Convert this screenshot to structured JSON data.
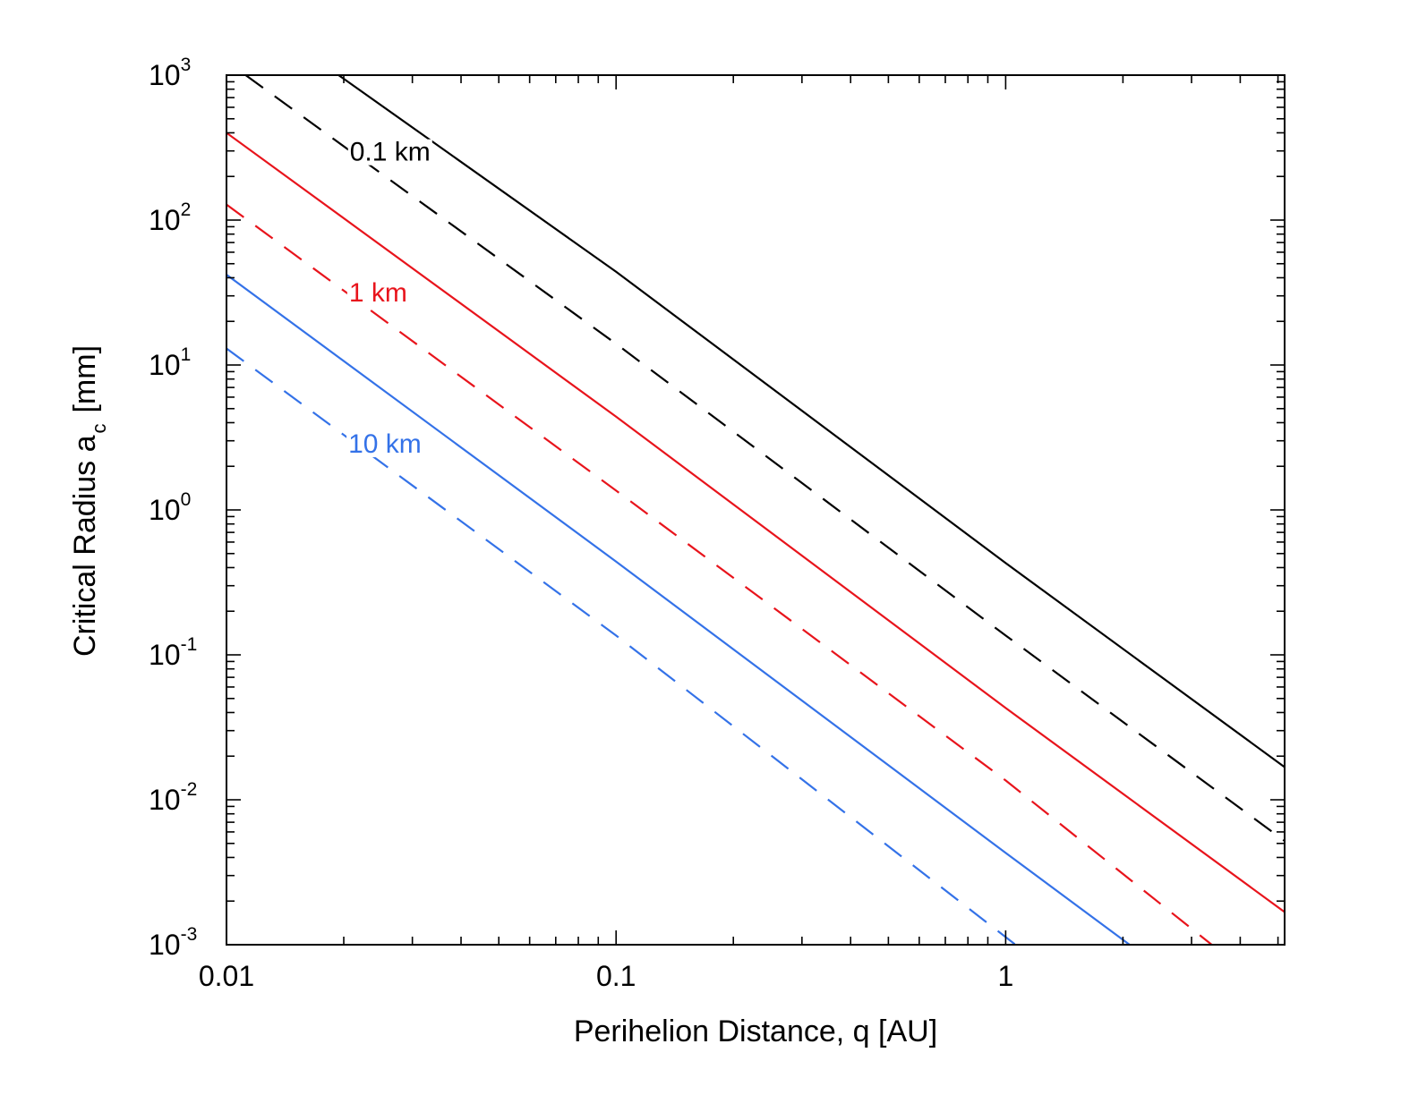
{
  "chart_data": {
    "type": "line",
    "xlabel": "Perihelion Distance, q [AU]",
    "ylabel_main": "Critical Radius a",
    "ylabel_sub": "c",
    "ylabel_unit": "[mm]",
    "xscale": "log",
    "yscale": "log",
    "xlim": [
      0.01,
      5.2
    ],
    "ylim": [
      0.001,
      1000
    ],
    "x_tick_labels": [
      {
        "value": 0.01,
        "label": "0.01"
      },
      {
        "value": 0.1,
        "label": "0.1"
      },
      {
        "value": 1,
        "label": "1"
      }
    ],
    "y_tick_labels": [
      {
        "value": 0.001,
        "base": "10",
        "exp": "-3"
      },
      {
        "value": 0.01,
        "base": "10",
        "exp": "-2"
      },
      {
        "value": 0.1,
        "base": "10",
        "exp": "-1"
      },
      {
        "value": 1,
        "base": "10",
        "exp": "0"
      },
      {
        "value": 10,
        "base": "10",
        "exp": "1"
      },
      {
        "value": 100,
        "base": "10",
        "exp": "2"
      },
      {
        "value": 1000,
        "base": "10",
        "exp": "3"
      }
    ],
    "grid": false,
    "series": [
      {
        "group": "0.1 km",
        "style": "solid",
        "color": "#000000",
        "x": [
          0.0194,
          0.1,
          1,
          5.2
        ],
        "y": [
          1000,
          44,
          0.43,
          0.0168
        ]
      },
      {
        "group": "0.1 km",
        "style": "dashed",
        "color": "#000000",
        "x": [
          0.0112,
          0.1,
          1,
          5.2
        ],
        "y": [
          1000,
          14,
          0.136,
          0.0052
        ]
      },
      {
        "group": "1 km",
        "style": "solid",
        "color": "#e8141c",
        "x": [
          0.01,
          0.1,
          1,
          5.2
        ],
        "y": [
          400,
          4.4,
          0.043,
          0.00168
        ]
      },
      {
        "group": "1 km",
        "style": "dashed",
        "color": "#e8141c",
        "x": [
          0.01,
          0.1,
          1,
          3.38
        ],
        "y": [
          128,
          1.36,
          0.0136,
          0.001
        ]
      },
      {
        "group": "10 km",
        "style": "solid",
        "color": "#3472e8",
        "x": [
          0.01,
          0.1,
          1,
          2.08
        ],
        "y": [
          42,
          0.44,
          0.0043,
          0.001
        ]
      },
      {
        "group": "10 km",
        "style": "dashed",
        "color": "#3472e8",
        "x": [
          0.01,
          0.1,
          1.06
        ],
        "y": [
          13,
          0.136,
          0.001
        ]
      }
    ],
    "annotations": [
      {
        "text": "0.1 km",
        "color": "#000000",
        "x": 0.0263,
        "y": 300
      },
      {
        "text": "1 km",
        "color": "#e8141c",
        "x": 0.0245,
        "y": 32
      },
      {
        "text": "10 km",
        "color": "#3472e8",
        "x": 0.0255,
        "y": 2.9
      }
    ]
  }
}
